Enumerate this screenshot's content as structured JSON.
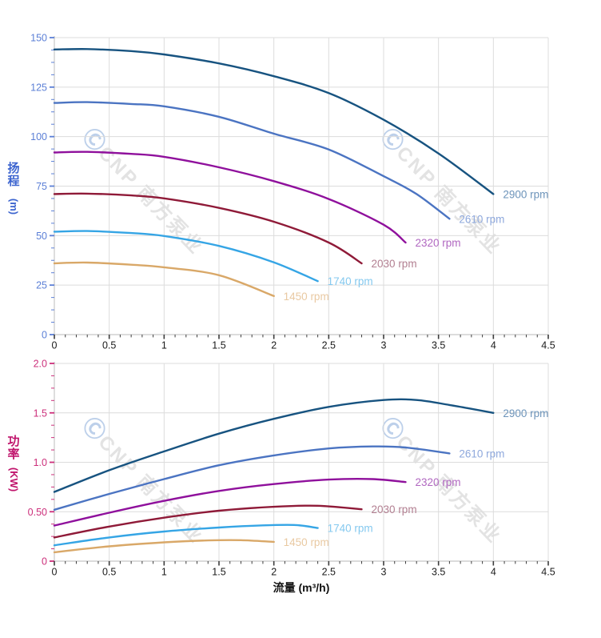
{
  "watermark": {
    "symbol": "Ⓒ",
    "text": "CNP 南方泵业"
  },
  "chart_data": [
    {
      "type": "line",
      "id": "head-curve",
      "title": "",
      "ylabel": "扬程 (m)",
      "ylabel_chars": [
        "扬",
        "程"
      ],
      "ylabel_unit": "(m)",
      "xlabel": "流量 (m³/h)",
      "xlim": [
        0,
        4.5
      ],
      "ylim": [
        0,
        150
      ],
      "grid": true,
      "x_major_step": 0.5,
      "x_minor_step": 0.1,
      "y_major_step": 25,
      "y_minor_step": 6.25,
      "x_tick_labels": [
        "0",
        "0.5",
        "1",
        "1.5",
        "2",
        "2.5",
        "3",
        "3.5",
        "4",
        "4.5"
      ],
      "y_tick_labels": [
        "0",
        "25",
        "50",
        "75",
        "100",
        "125",
        "150"
      ],
      "axis_color": "#5b7fd6",
      "title_color": "#3c64cf",
      "legend_position": "line-ends",
      "series": [
        {
          "name": "2900 rpm",
          "color": "#175380",
          "label_color": "#6d94ba",
          "points": [
            [
              0,
              144
            ],
            [
              0.3,
              144.2
            ],
            [
              0.7,
              143.2
            ],
            [
              1,
              141.5
            ],
            [
              1.5,
              137
            ],
            [
              2,
              130.5
            ],
            [
              2.5,
              122
            ],
            [
              3,
              108.5
            ],
            [
              3.5,
              91.5
            ],
            [
              4,
              71
            ]
          ]
        },
        {
          "name": "2610 rpm",
          "color": "#4b74c2",
          "label_color": "#8ea8dc",
          "points": [
            [
              0,
              117
            ],
            [
              0.3,
              117.4
            ],
            [
              0.7,
              116.5
            ],
            [
              1,
              115.3
            ],
            [
              1.5,
              110
            ],
            [
              2,
              101.5
            ],
            [
              2.5,
              93.5
            ],
            [
              3,
              80
            ],
            [
              3.3,
              71
            ],
            [
              3.6,
              58.5
            ]
          ]
        },
        {
          "name": "2320 rpm",
          "color": "#8f109c",
          "label_color": "#b168c1",
          "points": [
            [
              0,
              92
            ],
            [
              0.3,
              92.3
            ],
            [
              0.7,
              91.3
            ],
            [
              1,
              89.8
            ],
            [
              1.5,
              84.5
            ],
            [
              2,
              77.5
            ],
            [
              2.5,
              68.5
            ],
            [
              3,
              55.5
            ],
            [
              3.2,
              46.5
            ]
          ]
        },
        {
          "name": "2030 rpm",
          "color": "#8f1a38",
          "label_color": "#b27f91",
          "points": [
            [
              0,
              71
            ],
            [
              0.3,
              71.2
            ],
            [
              0.7,
              70.3
            ],
            [
              1,
              68.8
            ],
            [
              1.5,
              64
            ],
            [
              2,
              57
            ],
            [
              2.5,
              46.5
            ],
            [
              2.8,
              36
            ]
          ]
        },
        {
          "name": "1740 rpm",
          "color": "#35a5e5",
          "label_color": "#85c9ef",
          "points": [
            [
              0,
              52
            ],
            [
              0.3,
              52.3
            ],
            [
              0.7,
              51.3
            ],
            [
              1,
              49.8
            ],
            [
              1.5,
              44.8
            ],
            [
              2,
              36.5
            ],
            [
              2.4,
              27
            ]
          ]
        },
        {
          "name": "1450 rpm",
          "color": "#d9a868",
          "label_color": "#e9c9a2",
          "points": [
            [
              0,
              36
            ],
            [
              0.3,
              36.4
            ],
            [
              0.7,
              35.3
            ],
            [
              1,
              34
            ],
            [
              1.5,
              30
            ],
            [
              2,
              19.5
            ]
          ]
        }
      ]
    },
    {
      "type": "line",
      "id": "power-curve",
      "title": "",
      "ylabel": "功率 (KW)",
      "ylabel_chars": [
        "功",
        "率"
      ],
      "ylabel_unit": "(KW)",
      "xlabel": "流量 (m³/h)",
      "xlim": [
        0,
        4.5
      ],
      "ylim": [
        0,
        2.0
      ],
      "grid": true,
      "x_major_step": 0.5,
      "x_minor_step": 0.1,
      "y_major_step": 0.5,
      "y_minor_step": 0.125,
      "x_tick_labels": [
        "0",
        "0.5",
        "1",
        "1.5",
        "2",
        "2.5",
        "3",
        "3.5",
        "4",
        "4.5"
      ],
      "y_tick_labels": [
        "0",
        "0.50",
        "1.0",
        "1.5",
        "2.0"
      ],
      "axis_color": "#cc2f7b",
      "title_color": "#c0146c",
      "legend_position": "line-ends",
      "series": [
        {
          "name": "2900 rpm",
          "color": "#175380",
          "label_color": "#6d94ba",
          "points": [
            [
              0,
              0.7
            ],
            [
              0.5,
              0.92
            ],
            [
              1,
              1.11
            ],
            [
              1.5,
              1.29
            ],
            [
              2,
              1.44
            ],
            [
              2.5,
              1.56
            ],
            [
              3,
              1.63
            ],
            [
              3.3,
              1.63
            ],
            [
              3.6,
              1.58
            ],
            [
              4,
              1.5
            ]
          ]
        },
        {
          "name": "2610 rpm",
          "color": "#4b74c2",
          "label_color": "#8ea8dc",
          "points": [
            [
              0,
              0.52
            ],
            [
              0.5,
              0.68
            ],
            [
              1,
              0.83
            ],
            [
              1.5,
              0.97
            ],
            [
              2,
              1.07
            ],
            [
              2.5,
              1.14
            ],
            [
              2.9,
              1.16
            ],
            [
              3.2,
              1.15
            ],
            [
              3.6,
              1.09
            ]
          ]
        },
        {
          "name": "2320 rpm",
          "color": "#8f109c",
          "label_color": "#b168c1",
          "points": [
            [
              0,
              0.36
            ],
            [
              0.5,
              0.49
            ],
            [
              1,
              0.61
            ],
            [
              1.5,
              0.71
            ],
            [
              2,
              0.78
            ],
            [
              2.5,
              0.825
            ],
            [
              2.9,
              0.83
            ],
            [
              3.2,
              0.8
            ]
          ]
        },
        {
          "name": "2030 rpm",
          "color": "#8f1a38",
          "label_color": "#b27f91",
          "points": [
            [
              0,
              0.24
            ],
            [
              0.5,
              0.35
            ],
            [
              1,
              0.44
            ],
            [
              1.5,
              0.51
            ],
            [
              2,
              0.55
            ],
            [
              2.4,
              0.56
            ],
            [
              2.8,
              0.525
            ]
          ]
        },
        {
          "name": "1740 rpm",
          "color": "#35a5e5",
          "label_color": "#85c9ef",
          "points": [
            [
              0,
              0.16
            ],
            [
              0.5,
              0.24
            ],
            [
              1,
              0.3
            ],
            [
              1.5,
              0.34
            ],
            [
              1.9,
              0.362
            ],
            [
              2.2,
              0.365
            ],
            [
              2.4,
              0.335
            ]
          ]
        },
        {
          "name": "1450 rpm",
          "color": "#d9a868",
          "label_color": "#e9c9a2",
          "points": [
            [
              0,
              0.09
            ],
            [
              0.5,
              0.15
            ],
            [
              1,
              0.19
            ],
            [
              1.4,
              0.21
            ],
            [
              1.7,
              0.212
            ],
            [
              2,
              0.195
            ]
          ]
        }
      ]
    }
  ]
}
